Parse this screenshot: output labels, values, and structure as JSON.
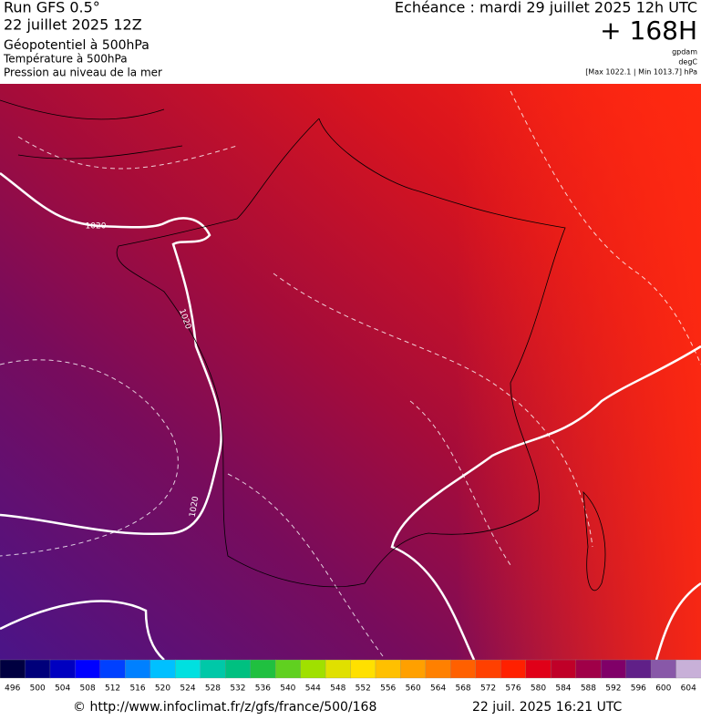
{
  "header": {
    "run": "Run GFS 0.5°",
    "date": "22 juillet 2025 12Z",
    "line1": "Géopotentiel à 500hPa",
    "line2": "Température à 500hPa",
    "line3": "Pression au niveau de la mer",
    "echeance": "Echéance : mardi 29 juillet 2025 12h UTC",
    "horizon": "+ 168H",
    "unit1": "gpdam",
    "unit2": "degC",
    "range": "[Max 1022.1 | Min 1013.7] hPa"
  },
  "map": {
    "isobar_labels": [
      "1020",
      "1020",
      "1020"
    ]
  },
  "scale": {
    "values": [
      496,
      500,
      504,
      508,
      512,
      516,
      520,
      524,
      528,
      532,
      536,
      540,
      544,
      548,
      552,
      556,
      560,
      564,
      568,
      572,
      576,
      580,
      584,
      588,
      592,
      596,
      600,
      604
    ],
    "colors": [
      "#000040",
      "#00007a",
      "#0000c0",
      "#0000ff",
      "#0040ff",
      "#0080ff",
      "#00c0ff",
      "#00e0e0",
      "#00c8a8",
      "#00c080",
      "#20c040",
      "#60d020",
      "#a0e000",
      "#e0e000",
      "#ffe000",
      "#ffc000",
      "#ffa000",
      "#ff8000",
      "#ff6000",
      "#ff4000",
      "#ff2000",
      "#e00018",
      "#c00028",
      "#a00048",
      "#800068",
      "#602088",
      "#8858a8",
      "#c8b0d8"
    ]
  },
  "footer": {
    "url": "© http://www.infoclimat.fr/z/gfs/france/500/168",
    "timestamp": "22 juil. 2025 16:21 UTC"
  }
}
